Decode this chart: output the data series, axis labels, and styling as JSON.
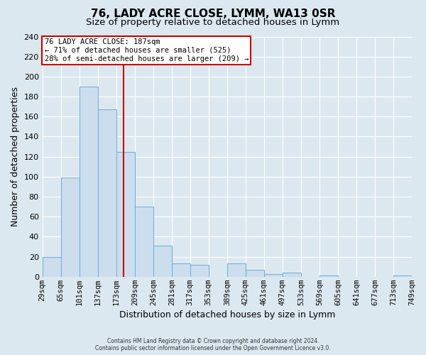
{
  "title": "76, LADY ACRE CLOSE, LYMM, WA13 0SR",
  "subtitle": "Size of property relative to detached houses in Lymm",
  "xlabel": "Distribution of detached houses by size in Lymm",
  "ylabel": "Number of detached properties",
  "bin_edges": [
    29,
    65,
    101,
    137,
    173,
    209,
    245,
    281,
    317,
    353,
    389,
    425,
    461,
    497,
    533,
    569,
    605,
    641,
    677,
    713,
    749
  ],
  "bin_counts": [
    20,
    99,
    190,
    167,
    125,
    70,
    31,
    13,
    12,
    0,
    13,
    7,
    3,
    4,
    0,
    1,
    0,
    0,
    0,
    1
  ],
  "bar_facecolor": "#ccdded",
  "bar_edgecolor": "#6baed6",
  "vline_x": 187,
  "vline_color": "#cc0000",
  "annotation_title": "76 LADY ACRE CLOSE: 187sqm",
  "annotation_line1": "← 71% of detached houses are smaller (525)",
  "annotation_line2": "28% of semi-detached houses are larger (209) →",
  "annotation_box_edgecolor": "#cc0000",
  "annotation_box_facecolor": "#ffffff",
  "ylim": [
    0,
    240
  ],
  "tick_labels": [
    "29sqm",
    "65sqm",
    "101sqm",
    "137sqm",
    "173sqm",
    "209sqm",
    "245sqm",
    "281sqm",
    "317sqm",
    "353sqm",
    "389sqm",
    "425sqm",
    "461sqm",
    "497sqm",
    "533sqm",
    "569sqm",
    "605sqm",
    "641sqm",
    "677sqm",
    "713sqm",
    "749sqm"
  ],
  "footer_line1": "Contains HM Land Registry data © Crown copyright and database right 2024.",
  "footer_line2": "Contains public sector information licensed under the Open Government Licence v3.0.",
  "background_color": "#dce8f0",
  "plot_background_color": "#dce8f0",
  "grid_color": "#ffffff",
  "title_fontsize": 11,
  "subtitle_fontsize": 9.5,
  "axis_label_fontsize": 9,
  "tick_fontsize": 7.5,
  "ytick_step": 20
}
